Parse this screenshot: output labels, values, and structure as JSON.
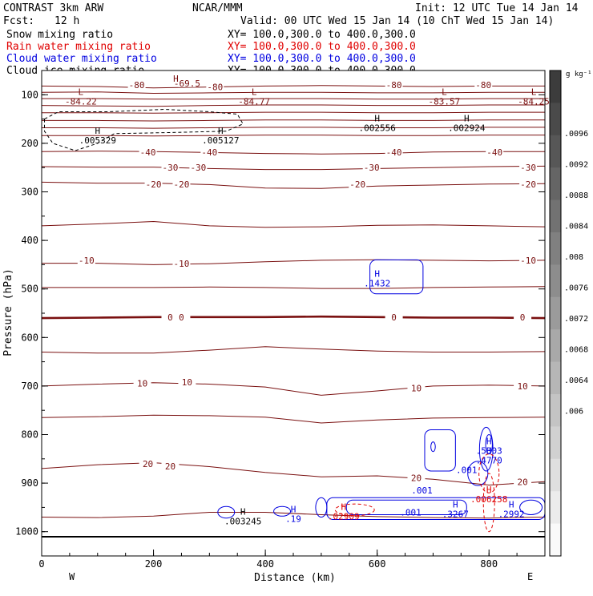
{
  "header": {
    "model": "CONTRAST  3km ARW",
    "org": "NCAR/MMM",
    "init": "Init: 12 UTC Tue 14 Jan 14",
    "fcst_label": "Fcst:",
    "fcst_value": "12 h",
    "valid": "Valid: 00 UTC Wed 15 Jan 14 (10 ChT Wed 15 Jan 14)"
  },
  "fields": [
    {
      "name": "Snow mixing ratio",
      "xy": "XY= 100.0,300.0 to 400.0,300.0",
      "color": "#000000"
    },
    {
      "name": "Rain water mixing ratio",
      "xy": "XY= 100.0,300.0 to 400.0,300.0",
      "color": "#e00000"
    },
    {
      "name": "Cloud water mixing ratio",
      "xy": "XY= 100.0,300.0 to 400.0,300.0",
      "color": "#0000e0"
    },
    {
      "name": "Cloud ice mixing ratio",
      "xy": "XY= 100.0,300.0 to 400.0,300.0",
      "color": "#000000"
    }
  ],
  "colors": {
    "temperature": "#7a1010",
    "snow": "#000000",
    "rain": "#e00000",
    "cloud_water": "#0000e0"
  },
  "chart_data": {
    "type": "contour",
    "xlabel": "Distance (km)",
    "ylabel": "Pressure (hPa)",
    "xlim": [
      0,
      900
    ],
    "ylim": [
      1050,
      50
    ],
    "x_ticks": [
      "0",
      "200",
      "400",
      "600",
      "800"
    ],
    "y_ticks": [
      "100",
      "200",
      "300",
      "400",
      "500",
      "600",
      "700",
      "800",
      "900",
      "1000"
    ],
    "x_end_labels": {
      "left": "W",
      "right": "E"
    },
    "temperature_contours": [
      {
        "level": -80,
        "p": [
          82,
          83,
          86,
          84,
          82,
          81,
          82,
          83,
          82,
          82
        ]
      },
      {
        "level": -70,
        "p": [
          95,
          94,
          97,
          96,
          95,
          95,
          96,
          96,
          95,
          95
        ]
      },
      {
        "level": -60,
        "p": [
          108,
          108,
          109,
          109,
          108,
          108,
          109,
          109,
          108,
          108
        ]
      },
      {
        "level": -55,
        "p": [
          122,
          123,
          124,
          122,
          121,
          121,
          122,
          122,
          121,
          121
        ]
      },
      {
        "level": -50,
        "p": [
          137,
          137,
          138,
          137,
          136,
          136,
          137,
          137,
          136,
          136
        ]
      },
      {
        "level": -45,
        "p": [
          153,
          153,
          154,
          153,
          152,
          152,
          153,
          153,
          152,
          152
        ]
      },
      {
        "level": -45,
        "p": [
          168,
          168,
          169,
          168,
          167,
          167,
          168,
          168,
          167,
          167
        ]
      },
      {
        "level": -45,
        "p": [
          184,
          184,
          185,
          184,
          183,
          183,
          184,
          184,
          183,
          183
        ]
      },
      {
        "level": -40,
        "p": [
          217,
          216,
          217,
          219,
          221,
          222,
          221,
          218,
          217,
          217
        ]
      },
      {
        "level": -30,
        "p": [
          248,
          249,
          249,
          252,
          254,
          254,
          252,
          250,
          248,
          247
        ]
      },
      {
        "level": -20,
        "p": [
          280,
          282,
          282,
          285,
          292,
          293,
          288,
          286,
          284,
          283
        ]
      },
      {
        "level": -15,
        "p": [
          370,
          366,
          361,
          370,
          373,
          372,
          369,
          368,
          370,
          372
        ]
      },
      {
        "level": -10,
        "p": [
          447,
          447,
          450,
          448,
          444,
          441,
          440,
          441,
          442,
          441
        ]
      },
      {
        "level": -5,
        "p": [
          497,
          497,
          497,
          496,
          497,
          499,
          499,
          497,
          496,
          495
        ]
      },
      {
        "level": 0,
        "p": [
          560,
          559,
          558,
          558,
          558,
          557,
          558,
          559,
          559,
          560
        ]
      },
      {
        "level": 5,
        "p": [
          630,
          632,
          632,
          626,
          619,
          624,
          628,
          630,
          630,
          629
        ]
      },
      {
        "level": 10,
        "p": [
          700,
          696,
          693,
          696,
          702,
          719,
          710,
          700,
          698,
          700
        ]
      },
      {
        "level": 15,
        "p": [
          765,
          763,
          760,
          761,
          764,
          776,
          770,
          766,
          765,
          764
        ]
      },
      {
        "level": 20,
        "p": [
          870,
          862,
          858,
          866,
          878,
          887,
          885,
          892,
          904,
          897
        ]
      },
      {
        "level": 25,
        "p": [
          970,
          971,
          968,
          960,
          960,
          965,
          969,
          971,
          972,
          970
        ]
      }
    ],
    "contour_labels": [
      {
        "text": "-80",
        "x": 170,
        "p": 80
      },
      {
        "text": "-80",
        "x": 310,
        "p": 84
      },
      {
        "text": "-80",
        "x": 630,
        "p": 80
      },
      {
        "text": "-80",
        "x": 790,
        "p": 80
      },
      {
        "text": "-69.5",
        "x": 260,
        "p": 76
      },
      {
        "text": "-40",
        "x": 190,
        "p": 218
      },
      {
        "text": "-40",
        "x": 300,
        "p": 218
      },
      {
        "text": "-40",
        "x": 630,
        "p": 218
      },
      {
        "text": "-40",
        "x": 810,
        "p": 218
      },
      {
        "text": "-30",
        "x": 230,
        "p": 250
      },
      {
        "text": "-30",
        "x": 280,
        "p": 250
      },
      {
        "text": "-30",
        "x": 590,
        "p": 250
      },
      {
        "text": "-30",
        "x": 870,
        "p": 250
      },
      {
        "text": "-20",
        "x": 200,
        "p": 284
      },
      {
        "text": "-20",
        "x": 250,
        "p": 284
      },
      {
        "text": "-20",
        "x": 565,
        "p": 284
      },
      {
        "text": "-20",
        "x": 870,
        "p": 284
      },
      {
        "text": "-10",
        "x": 80,
        "p": 441
      },
      {
        "text": "-10",
        "x": 250,
        "p": 448
      },
      {
        "text": "-10",
        "x": 870,
        "p": 441
      },
      {
        "text": "0",
        "x": 230,
        "p": 558
      },
      {
        "text": "0",
        "x": 250,
        "p": 558
      },
      {
        "text": "0",
        "x": 630,
        "p": 558
      },
      {
        "text": "0",
        "x": 860,
        "p": 558
      },
      {
        "text": "10",
        "x": 180,
        "p": 694
      },
      {
        "text": "10",
        "x": 260,
        "p": 692
      },
      {
        "text": "10",
        "x": 670,
        "p": 704
      },
      {
        "text": "10",
        "x": 860,
        "p": 700
      },
      {
        "text": "20",
        "x": 190,
        "p": 860
      },
      {
        "text": "20",
        "x": 230,
        "p": 865
      },
      {
        "text": "20",
        "x": 670,
        "p": 889
      },
      {
        "text": "20",
        "x": 860,
        "p": 897
      }
    ],
    "extrema": [
      {
        "kind": "L",
        "value": "-84.22",
        "x": 70,
        "p": 100
      },
      {
        "kind": "L",
        "value": "-84.77",
        "x": 380,
        "p": 100
      },
      {
        "kind": "L",
        "value": "-83.57",
        "x": 720,
        "p": 100
      },
      {
        "kind": "L",
        "value": "-84.25",
        "x": 880,
        "p": 100
      },
      {
        "kind": "H",
        "value": "",
        "x": 240,
        "p": 73
      },
      {
        "kind": "H",
        "value": ".005329",
        "x": 100,
        "p": 180
      },
      {
        "kind": "H",
        "value": ".005127",
        "x": 320,
        "p": 180
      },
      {
        "kind": "H",
        "value": ".002556",
        "x": 600,
        "p": 155
      },
      {
        "kind": "H",
        "value": ".002924",
        "x": 760,
        "p": 155
      },
      {
        "kind": "H",
        "value": ".1432",
        "x": 600,
        "p": 475
      },
      {
        "kind": "H",
        "value": ".5303",
        "x": 800,
        "p": 820
      },
      {
        "kind": "H",
        "value": ".4770",
        "x": 800,
        "p": 840
      },
      {
        "kind": "H",
        "value": ".006258",
        "x": 800,
        "p": 920
      },
      {
        "kind": "H",
        "value": ".3267",
        "x": 740,
        "p": 950
      },
      {
        "kind": "H",
        "value": ".2992",
        "x": 840,
        "p": 950
      },
      {
        "kind": "H",
        "value": ".19",
        "x": 450,
        "p": 960
      },
      {
        "kind": "H",
        "value": ".003245",
        "x": 360,
        "p": 965
      },
      {
        "kind": "H",
        "value": ".02909",
        "x": 540,
        "p": 955
      },
      {
        "kind": "",
        "value": ".001",
        "x": 760,
        "p": 873
      },
      {
        "kind": "",
        "value": ".001",
        "x": 680,
        "p": 915
      },
      {
        "kind": "",
        "value": ".001",
        "x": 660,
        "p": 960
      }
    ],
    "colorbar": {
      "unit": "g kg⁻¹",
      "ticks": [
        ".0096",
        ".0092",
        ".0088",
        ".0084",
        ".008",
        ".0076",
        ".0072",
        ".0068",
        ".0064",
        ".006"
      ]
    }
  }
}
